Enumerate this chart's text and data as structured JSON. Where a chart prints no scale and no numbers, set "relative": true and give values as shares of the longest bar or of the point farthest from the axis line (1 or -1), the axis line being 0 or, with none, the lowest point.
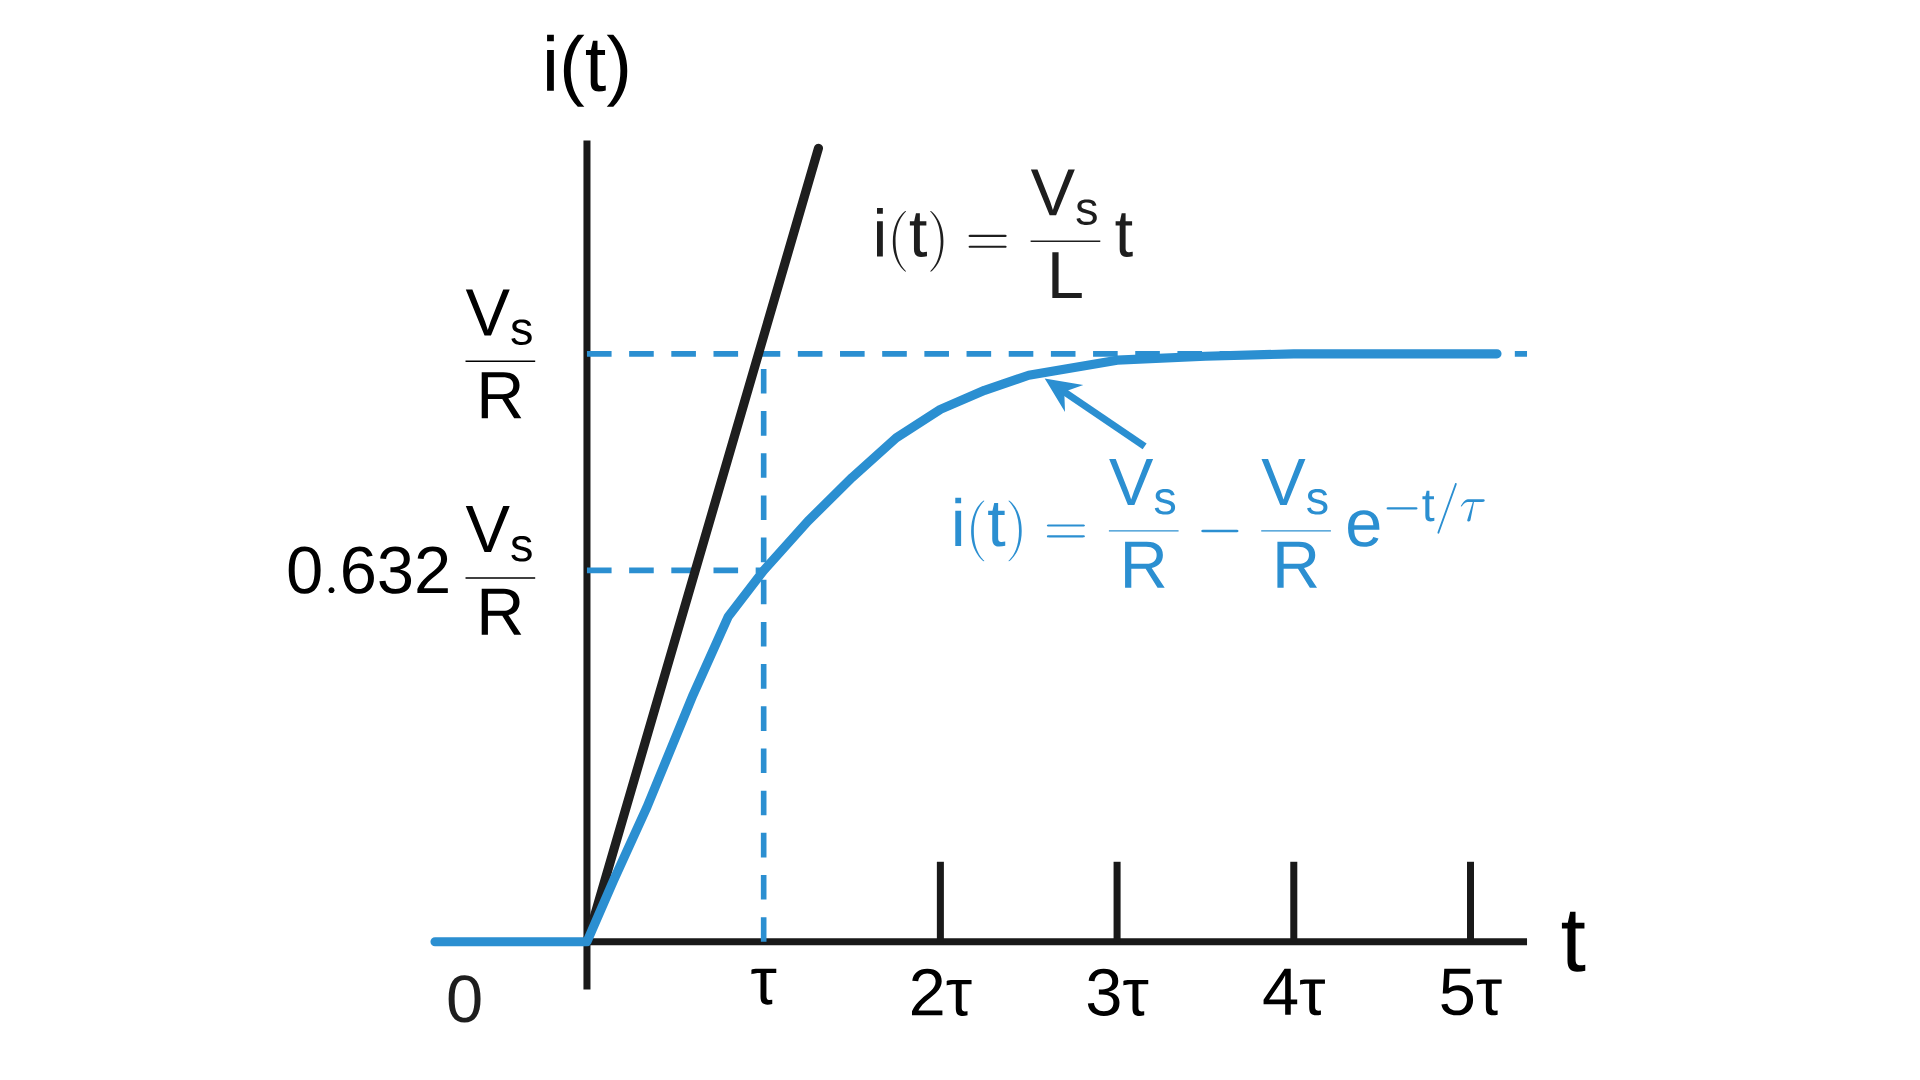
{
  "chart_data": {
    "type": "line",
    "relative": true,
    "xlabel": "t",
    "ylabel": "i(t)",
    "xlim": [
      -0.86,
      5.32
    ],
    "xticks": [
      {
        "value": 1,
        "label": "τ"
      },
      {
        "value": 2,
        "label": "2τ"
      },
      {
        "value": 3,
        "label": "3τ"
      },
      {
        "value": 4,
        "label": "4τ"
      },
      {
        "value": 5,
        "label": "5τ"
      }
    ],
    "series": [
      {
        "color": "#1e1e1e",
        "line_style": "solid",
        "x": [
          0,
          1.31
        ],
        "values": [
          0,
          1
        ]
      },
      {
        "color": "#2b8fd1",
        "line_style": "solid",
        "x": [
          -0.86,
          0,
          0.15,
          0.34,
          0.6,
          0.8,
          1,
          1.25,
          1.5,
          1.75,
          2,
          2.25,
          2.5,
          3,
          3.5,
          4,
          5.15
        ],
        "values": [
          0,
          0,
          0.077,
          0.17,
          0.311,
          0.41,
          0.468,
          0.53,
          0.585,
          0.635,
          0.671,
          0.695,
          0.714,
          0.733,
          0.738,
          0.741,
          0.741
        ]
      }
    ],
    "ref_lines": [
      {
        "axis": "y",
        "value": 0.741,
        "label": "\\frac{\\mathrm{V}_{\\mathrm{s}}}{\\mathrm{R}}",
        "color": "#2b8fd1",
        "line_style": "dashed"
      },
      {
        "axis": "y",
        "value": 0.468,
        "label": "\\mathrm{0.632}\\,\\frac{\\mathrm{V}_{\\mathrm{s}}}{\\mathrm{R}}",
        "color": "#2b8fd1",
        "line_style": "dashed"
      },
      {
        "axis": "x",
        "value": 1,
        "color": "#2b8fd1",
        "line_style": "dashed"
      }
    ],
    "annotations": [
      "\\mathrm{i(t)} = \\frac{\\mathrm{V}_{\\mathrm{s}}}{\\mathrm{L}}\\,\\mathrm{t}",
      "0",
      {
        "text": "\\mathrm{i(t)} = \\frac{\\mathrm{V}_{\\mathrm{s}}}{\\mathrm{R}} - \\frac{\\mathrm{V}_{\\mathrm{s}}}{\\mathrm{R}}\\,\\mathrm{e}^{\\mathrm{-t/}\\tau}",
        "x": 2.59,
        "y": 0.71
      }
    ]
  }
}
